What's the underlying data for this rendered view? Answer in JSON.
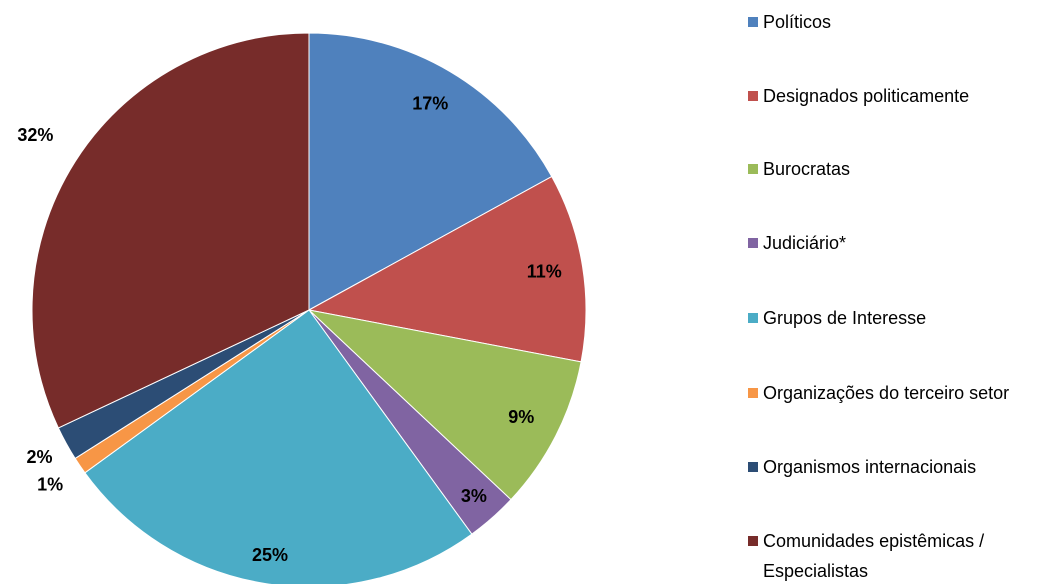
{
  "chart_data": {
    "type": "pie",
    "categories": [
      "Políticos",
      "Designados politicamente",
      "Burocratas",
      "Judiciário*",
      "Grupos de Interesse",
      "Organizações do terceiro setor",
      "Organismos internacionais",
      "Comunidades epistêmicas / Especialistas"
    ],
    "values": [
      17,
      11,
      9,
      3,
      25,
      1,
      2,
      32
    ],
    "value_labels": [
      "17%",
      "11%",
      "9%",
      "3%",
      "25%",
      "1%",
      "2%",
      "32%"
    ],
    "colors": [
      "#4f81bd",
      "#c0504d",
      "#9bbb59",
      "#8064a2",
      "#4bacc6",
      "#f79646",
      "#2c4d75",
      "#772c2a"
    ],
    "legend": "right"
  }
}
